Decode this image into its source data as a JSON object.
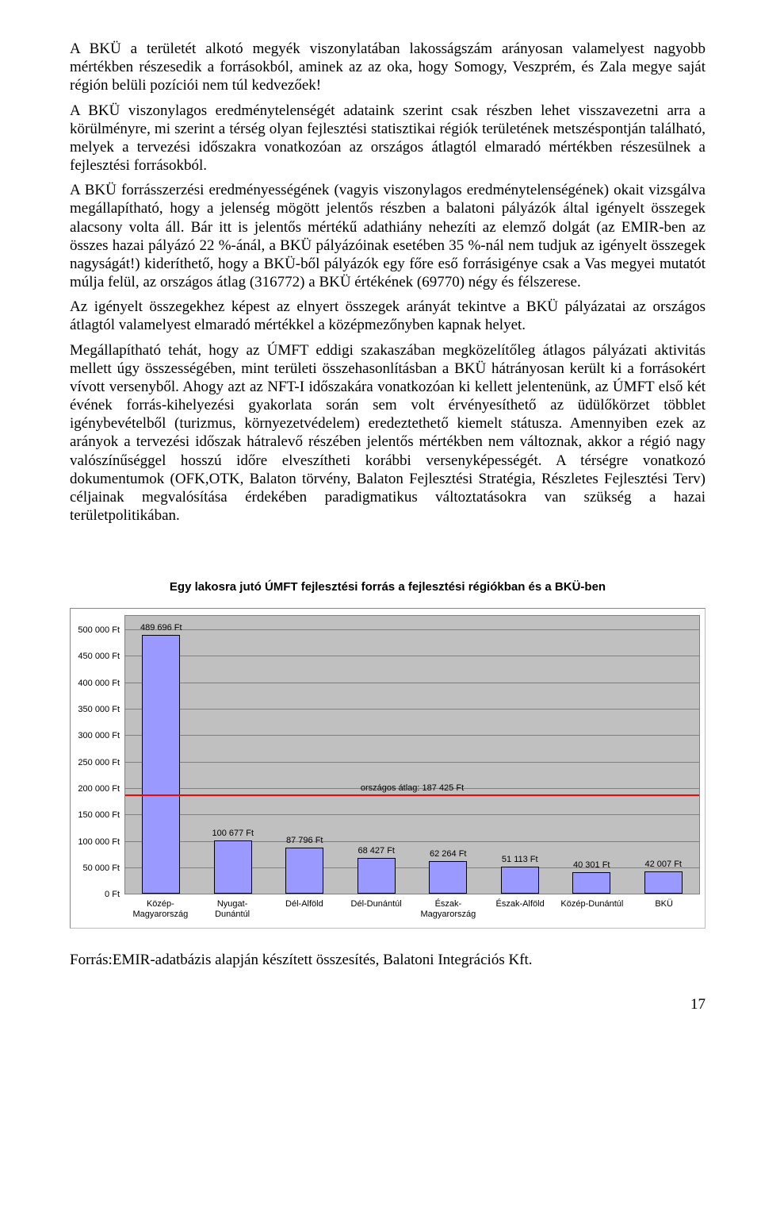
{
  "paragraphs": {
    "p1": "A BKÜ a területét alkotó megyék viszonylatában lakosságszám arányosan valamelyest nagyobb mértékben részesedik a forrásokból, aminek az az oka, hogy Somogy, Veszprém, és Zala megye saját régión belüli pozíciói nem túl kedvezőek!",
    "p2": "A BKÜ viszonylagos eredménytelenségét adataink szerint csak részben lehet visszavezetni arra a körülményre, mi szerint a térség olyan fejlesztési statisztikai régiók területének metszéspontján található, melyek a tervezési időszakra vonatkozóan az országos átlagtól elmaradó mértékben részesülnek a fejlesztési forrásokból.",
    "p3": "A BKÜ forrásszerzési eredményességének (vagyis viszonylagos eredménytelenségének) okait vizsgálva megállapítható, hogy a jelenség mögött jelentős részben a balatoni pályázók által igényelt összegek alacsony volta áll. Bár itt is jelentős mértékű adathiány nehezíti az elemző dolgát (az EMIR-ben az összes hazai pályázó 22 %-ánál, a BKÜ pályázóinak esetében 35 %-nál nem tudjuk az igényelt összegek nagyságát!) kideríthető, hogy  a BKÜ-ből pályázók egy főre eső forrásigénye csak a  Vas megyei mutatót múlja felül, az országos átlag (316772) a BKÜ értékének (69770) négy és félszerese.",
    "p4": "Az igényelt összegekhez képest az elnyert összegek arányát tekintve a BKÜ pályázatai az országos átlagtól valamelyest elmaradó mértékkel a középmezőnyben kapnak helyet.",
    "p5": "Megállapítható tehát, hogy az ÚMFT eddigi szakaszában megközelítőleg átlagos pályázati aktivitás mellett úgy összességében,  mint területi összehasonlításban a BKÜ hátrányosan került ki a forrásokért vívott versenyből.  Ahogy azt az NFT-I időszakára vonatkozóan ki kellett jelentenünk, az ÚMFT első két évének forrás-kihelyezési gyakorlata során sem volt érvényesíthető az üdülőkörzet többlet igénybevételből (turizmus, környezetvédelem) eredeztethető kiemelt státusza. Amennyiben ezek az arányok a tervezési időszak hátralevő részében jelentős mértékben nem változnak, akkor a régió nagy valószínűséggel hosszú időre elveszítheti korábbi versenyképességét. A térségre vonatkozó dokumentumok (OFK,OTK, Balaton törvény, Balaton Fejlesztési Stratégia, Részletes Fejlesztési Terv) céljainak megvalósítása érdekében paradigmatikus változtatásokra van szükség a hazai területpolitikában."
  },
  "chart": {
    "title": "Egy lakosra jutó ÚMFT fejlesztési forrás a fejlesztési régiókban és a BKÜ-ben",
    "y_max": 525000,
    "y_ticks": [
      {
        "v": 0,
        "label": "0 Ft"
      },
      {
        "v": 50000,
        "label": "50 000 Ft"
      },
      {
        "v": 100000,
        "label": "100 000 Ft"
      },
      {
        "v": 150000,
        "label": "150 000 Ft"
      },
      {
        "v": 200000,
        "label": "200 000 Ft"
      },
      {
        "v": 250000,
        "label": "250 000 Ft"
      },
      {
        "v": 300000,
        "label": "300 000 Ft"
      },
      {
        "v": 350000,
        "label": "350 000 Ft"
      },
      {
        "v": 400000,
        "label": "400 000 Ft"
      },
      {
        "v": 450000,
        "label": "450 000 Ft"
      },
      {
        "v": 500000,
        "label": "500 000 Ft"
      }
    ],
    "bar_color": "#9999ff",
    "bar_border": "#000000",
    "plot_bg": "#c0c0c0",
    "grid_color": "#808080",
    "ref_value": 187425,
    "ref_color": "#ff0000",
    "ref_label": "országos átlag: 187 425 Ft",
    "bars": [
      {
        "cat_lines": [
          "Közép-",
          "Magyarország"
        ],
        "value": 489696,
        "label": "489 696 Ft"
      },
      {
        "cat_lines": [
          "Nyugat-",
          "Dunántúl"
        ],
        "value": 100677,
        "label": "100 677 Ft"
      },
      {
        "cat_lines": [
          "Dél-Alföld"
        ],
        "value": 87796,
        "label": "87 796 Ft"
      },
      {
        "cat_lines": [
          "Dél-Dunántúl"
        ],
        "value": 68427,
        "label": "68 427 Ft"
      },
      {
        "cat_lines": [
          "Észak-",
          "Magyarország"
        ],
        "value": 62264,
        "label": "62 264 Ft"
      },
      {
        "cat_lines": [
          "Észak-Alföld"
        ],
        "value": 51113,
        "label": "51 113 Ft"
      },
      {
        "cat_lines": [
          "Közép-Dunántúl"
        ],
        "value": 40301,
        "label": "40 301 Ft"
      },
      {
        "cat_lines": [
          "BKÜ"
        ],
        "value": 42007,
        "label": "42 007 Ft"
      }
    ]
  },
  "source": "Forrás:EMIR-adatbázis alapján készített összesítés, Balatoni Integrációs Kft.",
  "page_number": "17"
}
